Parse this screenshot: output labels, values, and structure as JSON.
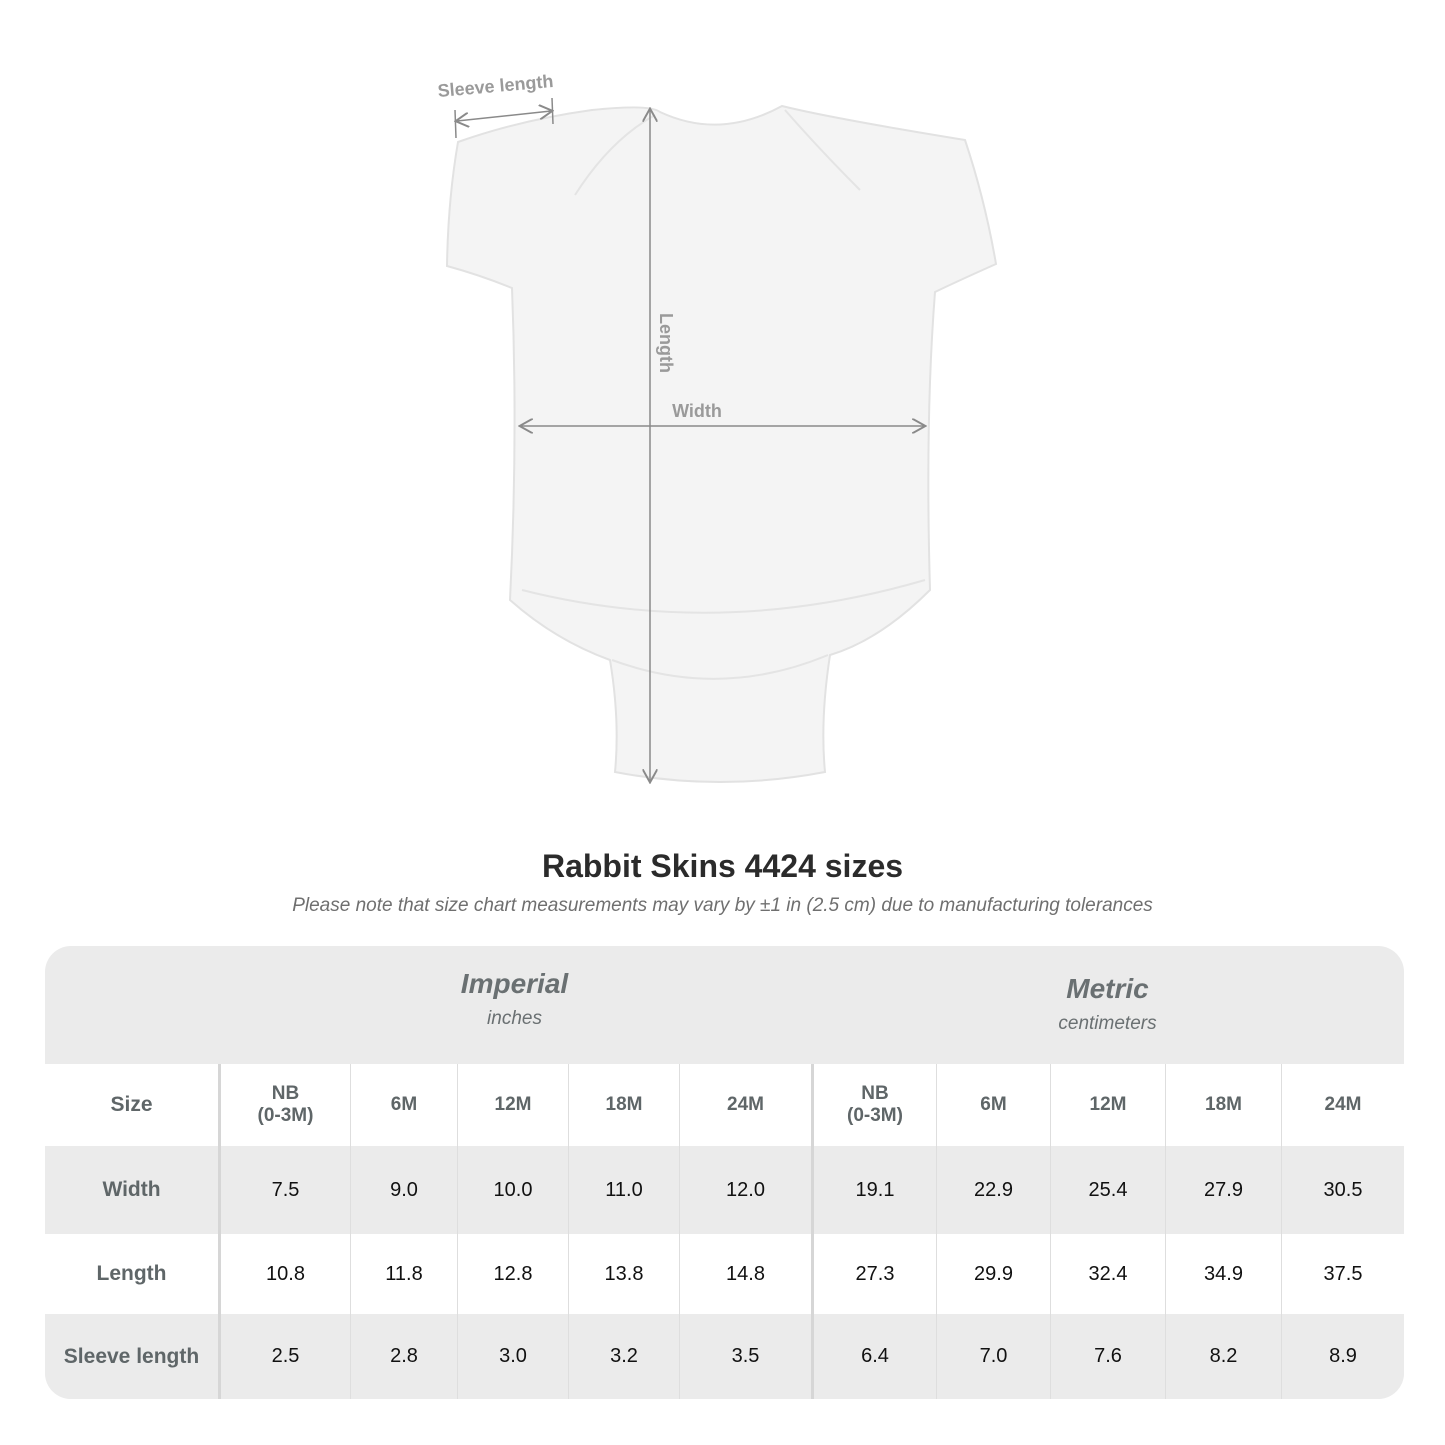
{
  "diagram": {
    "labels": {
      "sleeve": "Sleeve length",
      "length": "Length",
      "width": "Width"
    },
    "garment_color": "#f4f4f4"
  },
  "header": {
    "title": "Rabbit Skins 4424 sizes",
    "note": "Please note that size chart measurements may vary by ±1 in (2.5 cm) due to manufacturing tolerances"
  },
  "table": {
    "imperial": {
      "name": "Imperial",
      "unit": "inches"
    },
    "metric": {
      "name": "Metric",
      "unit": "centimeters"
    },
    "size_label": "Size",
    "sizes": [
      "NB\n(0-3M)",
      "6M",
      "12M",
      "18M",
      "24M"
    ],
    "rows": [
      {
        "label": "Width",
        "imperial": [
          "7.5",
          "9.0",
          "10.0",
          "11.0",
          "12.0"
        ],
        "metric": [
          "19.1",
          "22.9",
          "25.4",
          "27.9",
          "30.5"
        ]
      },
      {
        "label": "Length",
        "imperial": [
          "10.8",
          "11.8",
          "12.8",
          "13.8",
          "14.8"
        ],
        "metric": [
          "27.3",
          "29.9",
          "32.4",
          "34.9",
          "37.5"
        ]
      },
      {
        "label": "Sleeve length",
        "imperial": [
          "2.5",
          "2.8",
          "3.0",
          "3.2",
          "3.5"
        ],
        "metric": [
          "6.4",
          "7.0",
          "7.6",
          "8.2",
          "8.9"
        ]
      }
    ]
  }
}
